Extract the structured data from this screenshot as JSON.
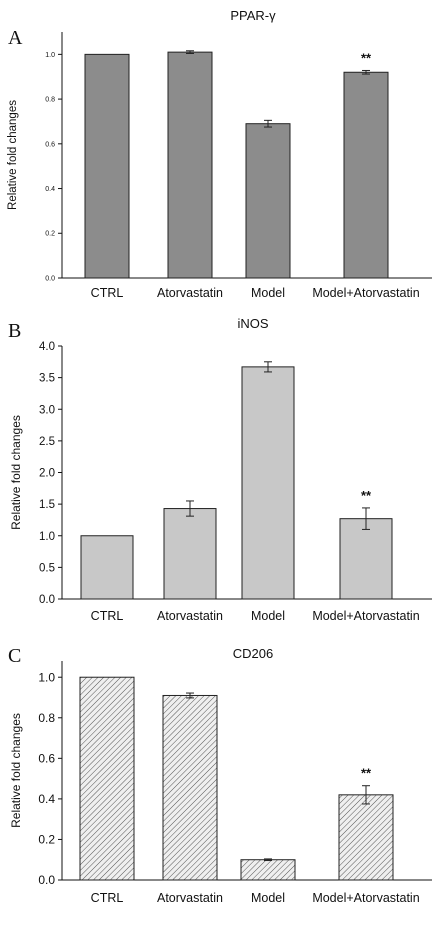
{
  "chart_data": [
    {
      "panel": "A",
      "type": "bar",
      "title": "PPAR-γ",
      "xlabel": "",
      "ylabel": "Relative fold changes",
      "categories": [
        "CTRL",
        "Atorvastatin",
        "Model",
        "Model+Atorvastatin"
      ],
      "values": [
        1.0,
        1.01,
        0.69,
        0.92
      ],
      "errors": [
        0.0,
        0.006,
        0.015,
        0.008
      ],
      "annotations": [
        "",
        "",
        "",
        "**"
      ],
      "ylim": [
        0,
        1.1
      ],
      "yticks": [
        0.0,
        0.2,
        0.4,
        0.6,
        0.8,
        1.0
      ],
      "ytick_labels": [
        "0.0",
        "0.2",
        "0.4",
        "0.6",
        "0.8",
        "1.0"
      ],
      "bar_color": "#8c8c8c",
      "fill": "solid"
    },
    {
      "panel": "B",
      "type": "bar",
      "title": "iNOS",
      "xlabel": "",
      "ylabel": "Relative fold changes",
      "categories": [
        "CTRL",
        "Atorvastatin",
        "Model",
        "Model+Atorvastatin"
      ],
      "values": [
        1.0,
        1.43,
        3.67,
        1.27
      ],
      "errors": [
        0.0,
        0.12,
        0.08,
        0.17
      ],
      "annotations": [
        "",
        "",
        "",
        "**"
      ],
      "ylim": [
        0,
        4.0
      ],
      "yticks": [
        0.0,
        0.5,
        1.0,
        1.5,
        2.0,
        2.5,
        3.0,
        3.5,
        4.0
      ],
      "ytick_labels": [
        "0.0",
        "0.5",
        "1.0",
        "1.5",
        "2.0",
        "2.5",
        "3.0",
        "3.5",
        "4.0"
      ],
      "bar_color": "#c8c8c8",
      "fill": "solid"
    },
    {
      "panel": "C",
      "type": "bar",
      "title": "CD206",
      "xlabel": "",
      "ylabel": "Relative fold changes",
      "categories": [
        "CTRL",
        "Atorvastatin",
        "Model",
        "Model+Atorvastatin"
      ],
      "values": [
        1.0,
        0.91,
        0.1,
        0.42
      ],
      "errors": [
        0.0,
        0.012,
        0.004,
        0.045
      ],
      "annotations": [
        "",
        "",
        "",
        "**"
      ],
      "ylim": [
        0,
        1.08
      ],
      "yticks": [
        0.0,
        0.2,
        0.4,
        0.6,
        0.8,
        1.0
      ],
      "ytick_labels": [
        "0.0",
        "0.2",
        "0.4",
        "0.6",
        "0.8",
        "1.0"
      ],
      "bar_color": "#e6e6e6",
      "fill": "hatched"
    }
  ]
}
